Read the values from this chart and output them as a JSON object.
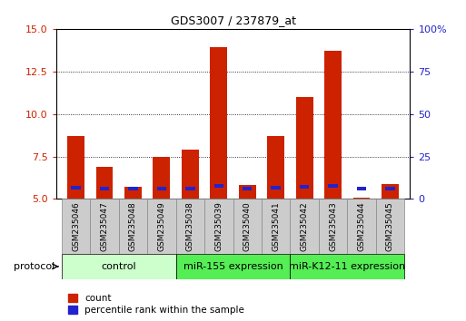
{
  "title": "GDS3007 / 237879_at",
  "samples": [
    "GSM235046",
    "GSM235047",
    "GSM235048",
    "GSM235049",
    "GSM235038",
    "GSM235039",
    "GSM235040",
    "GSM235041",
    "GSM235042",
    "GSM235043",
    "GSM235044",
    "GSM235045"
  ],
  "count_values": [
    8.7,
    6.9,
    5.7,
    7.5,
    7.9,
    13.9,
    5.8,
    8.7,
    11.0,
    13.7,
    5.1,
    5.9
  ],
  "percentile_values": [
    6.5,
    6.1,
    5.9,
    6.3,
    6.3,
    7.7,
    5.9,
    6.7,
    7.1,
    7.7,
    5.9,
    6.1
  ],
  "ylim_left": [
    5,
    15
  ],
  "ylim_right": [
    0,
    100
  ],
  "yticks_left": [
    5,
    7.5,
    10,
    12.5,
    15
  ],
  "yticks_right": [
    0,
    25,
    50,
    75,
    100
  ],
  "bar_color_count": "#cc2200",
  "bar_color_pct": "#2222cc",
  "bar_width": 0.6,
  "control_color": "#ccffcc",
  "expr_color": "#55ee55",
  "legend_count_label": "count",
  "legend_pct_label": "percentile rank within the sample",
  "protocol_label": "protocol",
  "tick_color_left": "#cc2200",
  "tick_color_right": "#2222cc",
  "bg_color": "#ffffff",
  "label_box_color": "#cccccc",
  "label_box_edge": "#888888"
}
